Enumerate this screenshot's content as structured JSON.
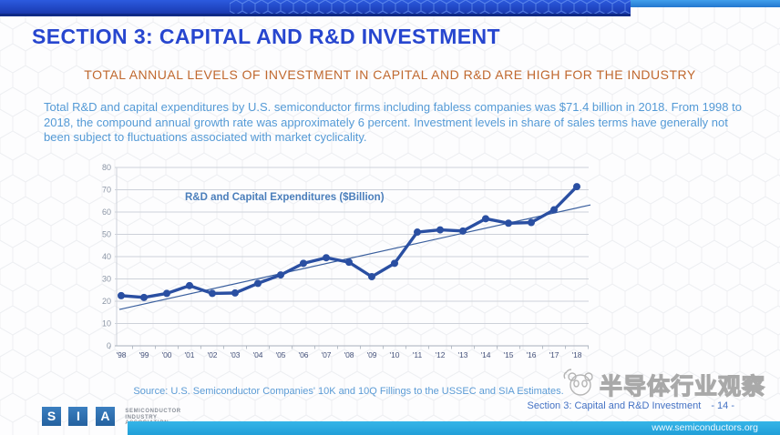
{
  "header": {
    "title": "SECTION 3: CAPITAL AND R&D INVESTMENT",
    "subtitle": "TOTAL ANNUAL LEVELS OF INVESTMENT IN CAPITAL AND R&D ARE HIGH FOR THE INDUSTRY"
  },
  "body": {
    "paragraph": "Total R&D and capital expenditures by U.S. semiconductor firms including fabless companies was $71.4 billion in 2018. From 1998 to 2018, the compound annual growth rate was approximately 6 percent. Investment levels in share of sales terms have generally not been subject to fluctuations associated with market cyclicality."
  },
  "chart_data": {
    "type": "line",
    "title": "R&D and Capital Expenditures ($Billion)",
    "categories": [
      "'98",
      "'99",
      "'00",
      "'01",
      "'02",
      "'03",
      "'04",
      "'05",
      "'06",
      "'07",
      "'08",
      "'09",
      "'10",
      "'11",
      "'12",
      "'13",
      "'14",
      "'15",
      "'16",
      "'17",
      "'18"
    ],
    "values": [
      22.5,
      21.7,
      23.5,
      27.0,
      23.5,
      23.7,
      28.0,
      31.8,
      37.0,
      39.5,
      37.5,
      31.0,
      37.0,
      51.0,
      52.0,
      51.5,
      57.0,
      55.0,
      55.3,
      61.0,
      71.4
    ],
    "trendline": {
      "start_value": 16.3,
      "end_value": 63.2
    },
    "ylim": [
      0,
      80
    ],
    "ytick_step": 10,
    "grid": true,
    "legend": "none",
    "line_color": "#2a4fa2",
    "trend_color": "#3a5f9e",
    "title_color": "#4a7ebb",
    "grid_color": "#cdd1d9",
    "axis_color": "#a8b0bc",
    "ytick_color": "#8b95a5",
    "xtick_color": "#44517a"
  },
  "source_note": "Source: U.S. Semiconductor Companies' 10K and 10Q Fillings to the USSEC and SIA Estimates.",
  "footer": {
    "section_label": "Section 3: Capital and R&D Investment",
    "page_number": "- 14 -",
    "website": "www.semiconductors.org"
  },
  "logo": {
    "letters": [
      "S",
      "I",
      "A"
    ],
    "org_lines": [
      "SEMICONDUCTOR",
      "INDUSTRY",
      "ASSOCIATION"
    ]
  },
  "watermark": {
    "text": "半导体行业观察"
  }
}
